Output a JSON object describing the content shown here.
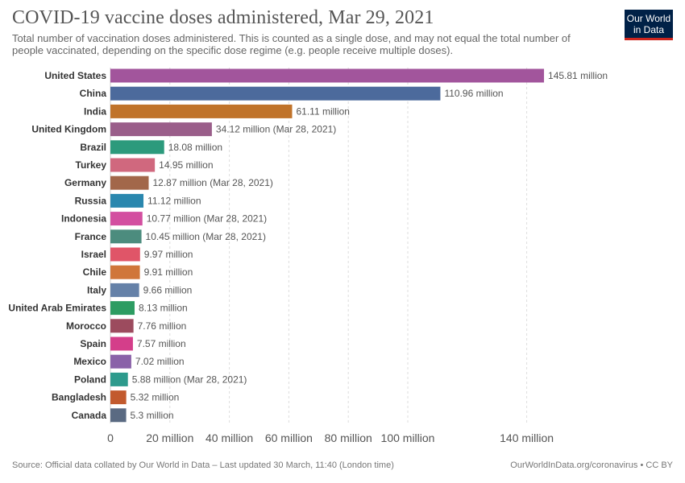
{
  "header": {
    "title": "COVID-19 vaccine doses administered, Mar 29, 2021",
    "subtitle": "Total number of vaccination doses administered. This is counted as a single dose, and may not equal the total number of people vaccinated, depending on the specific dose regime (e.g. people receive multiple doses).",
    "logo_line1": "Our World",
    "logo_line2": "in Data",
    "logo_color": "#002147",
    "logo_accent": "#ce261e"
  },
  "footer": {
    "source": "Source: Official data collated by Our World in Data – Last updated 30 March, 11:40 (London time)",
    "credit": "OurWorldInData.org/coronavirus • CC BY"
  },
  "chart_data": {
    "type": "bar",
    "orientation": "horizontal",
    "grid": true,
    "xlim": [
      0,
      140
    ],
    "x_ticks": [
      0,
      20,
      40,
      60,
      80,
      100,
      140
    ],
    "x_tick_labels": [
      "0",
      "20 million",
      "40 million",
      "60 million",
      "80 million",
      "100 million",
      "140 million"
    ],
    "categories": [
      "United States",
      "China",
      "India",
      "United Kingdom",
      "Brazil",
      "Turkey",
      "Germany",
      "Russia",
      "Indonesia",
      "France",
      "Israel",
      "Chile",
      "Italy",
      "United Arab Emirates",
      "Morocco",
      "Spain",
      "Mexico",
      "Poland",
      "Bangladesh",
      "Canada"
    ],
    "values": [
      145.81,
      110.96,
      61.11,
      34.12,
      18.08,
      14.95,
      12.87,
      11.12,
      10.77,
      10.45,
      9.97,
      9.91,
      9.66,
      8.13,
      7.76,
      7.57,
      7.02,
      5.88,
      5.32,
      5.3
    ],
    "value_labels": [
      "145.81 million",
      "110.96 million",
      "61.11 million",
      "34.12 million (Mar 28, 2021)",
      "18.08 million",
      "14.95 million",
      "12.87 million (Mar 28, 2021)",
      "11.12 million",
      "10.77 million (Mar 28, 2021)",
      "10.45 million (Mar 28, 2021)",
      "9.97 million",
      "9.91 million",
      "9.66 million",
      "8.13 million",
      "7.76 million",
      "7.57 million",
      "7.02 million",
      "5.88 million (Mar 28, 2021)",
      "5.32 million",
      "5.3 million"
    ],
    "colors": [
      "#a2559c",
      "#4c6a9c",
      "#c0732a",
      "#9a5e8a",
      "#2c9a7c",
      "#d0687e",
      "#a2674a",
      "#2a87ae",
      "#d34fa0",
      "#4c8c7e",
      "#e05568",
      "#d0763a",
      "#6581a8",
      "#2d9c62",
      "#9c4b5e",
      "#d43e8a",
      "#8a62a8",
      "#2d9a8c",
      "#c25a2e",
      "#5a6a82"
    ]
  }
}
